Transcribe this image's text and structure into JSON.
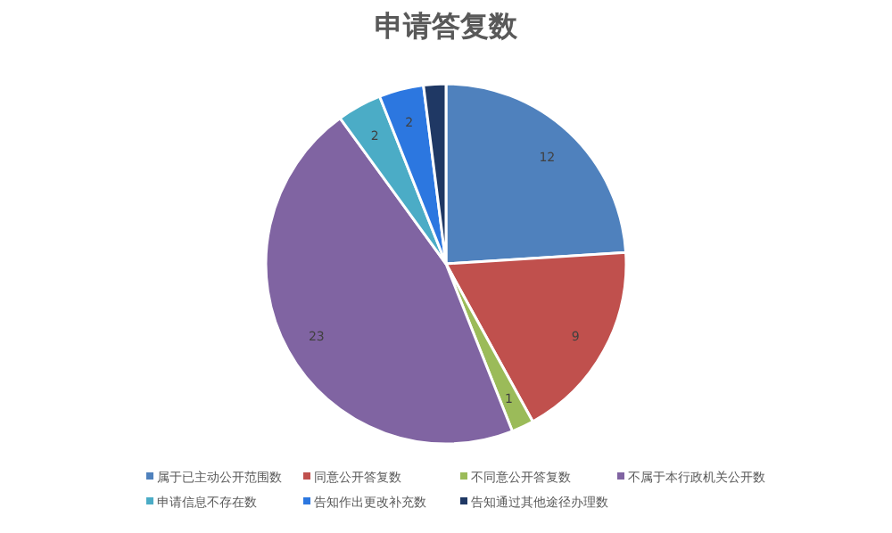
{
  "chart_data": {
    "type": "pie",
    "title": "申请答复数",
    "categories": [
      "属于已主动公开范围数",
      "同意公开答复数",
      "不同意公开答复数",
      "不属于本行政机关公开数",
      "申请信息不存在数",
      "告知作出更改补充数",
      "告知通过其他途径办理数"
    ],
    "values": [
      12,
      9,
      1,
      23,
      2,
      2,
      1
    ],
    "colors": [
      "#4f81bd",
      "#c0504d",
      "#9bbb59",
      "#8064a2",
      "#4bacc6",
      "#2c77e0",
      "#1f3864"
    ],
    "value_labels": [
      "12",
      "9",
      "1",
      "23",
      "2",
      "2",
      null
    ],
    "legend": "bottom"
  }
}
